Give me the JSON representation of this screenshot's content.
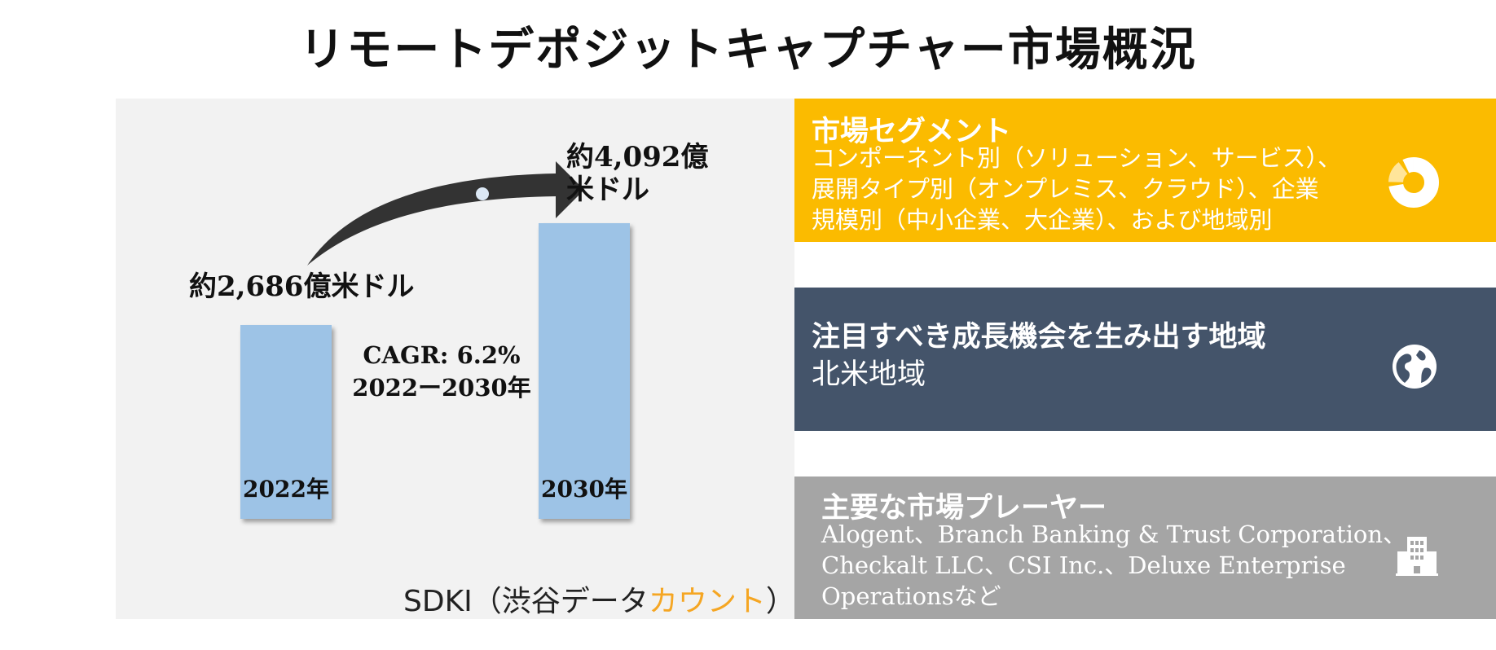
{
  "title": "リモートデポジットキャプチャー市場概況",
  "chart_data": {
    "type": "bar",
    "categories": [
      "2022年",
      "2030年"
    ],
    "values": [
      2686,
      4092
    ],
    "value_labels": [
      "約2,686億米ドル",
      "約4,092億米ドル"
    ],
    "value_label_2030_line1": "約4,092億",
    "value_label_2030_line2": "米ドル",
    "unit": "億米ドル",
    "cagr_line1": "CAGR: 6.2%",
    "cagr_line2": "2022ー2030年",
    "colors": {
      "bar": "#9dc3e6",
      "arrow": "#333333"
    }
  },
  "brand": {
    "prefix": "SDKI（渋谷データ",
    "accent": "カウント",
    "suffix": "）",
    "accent_color": "#f5a623"
  },
  "segments": {
    "title": "市場セグメント",
    "lines": [
      "コンポーネント別（ソリューション、サービス）、",
      "展開タイプ別（オンプレミス、クラウド）、企業",
      "規模別（中小企業、大企業）、および地域別"
    ],
    "icon": "donut-chart-icon",
    "color": "#fbbb00"
  },
  "region": {
    "title": "注目すべき成長機会を生み出す地域",
    "value": "北米地域",
    "icon": "globe-icon",
    "color": "#44546a"
  },
  "players": {
    "title": "主要な市場プレーヤー",
    "lines": [
      "Alogent、Branch Banking & Trust Corporation、",
      "Checkalt LLC、CSI Inc.、Deluxe Enterprise",
      "Operationsなど"
    ],
    "icon": "building-icon",
    "color": "#a5a5a5"
  }
}
